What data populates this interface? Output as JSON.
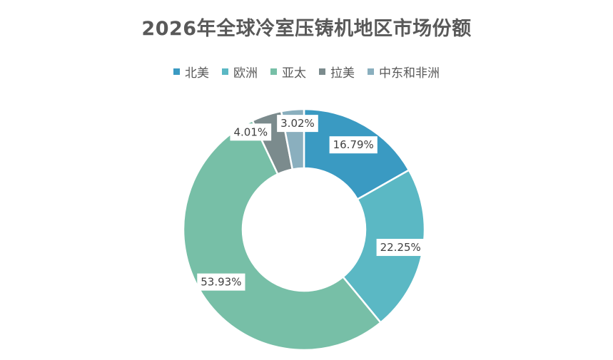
{
  "chart_data": {
    "type": "pie",
    "subtype": "donut",
    "title": "2026年全球冷室压铸机地区市场份额",
    "categories": [
      "北美",
      "欧洲",
      "亚太",
      "拉美",
      "中东和非洲"
    ],
    "values": [
      16.79,
      22.25,
      53.93,
      4.01,
      3.02
    ],
    "labels": [
      "16.79%",
      "22.25%",
      "53.93%",
      "4.01%",
      "3.02%"
    ],
    "colors": [
      "#3a9ac2",
      "#5bb8c4",
      "#77bfa7",
      "#7b8b8d",
      "#8aafbe"
    ],
    "legend_position": "top"
  }
}
